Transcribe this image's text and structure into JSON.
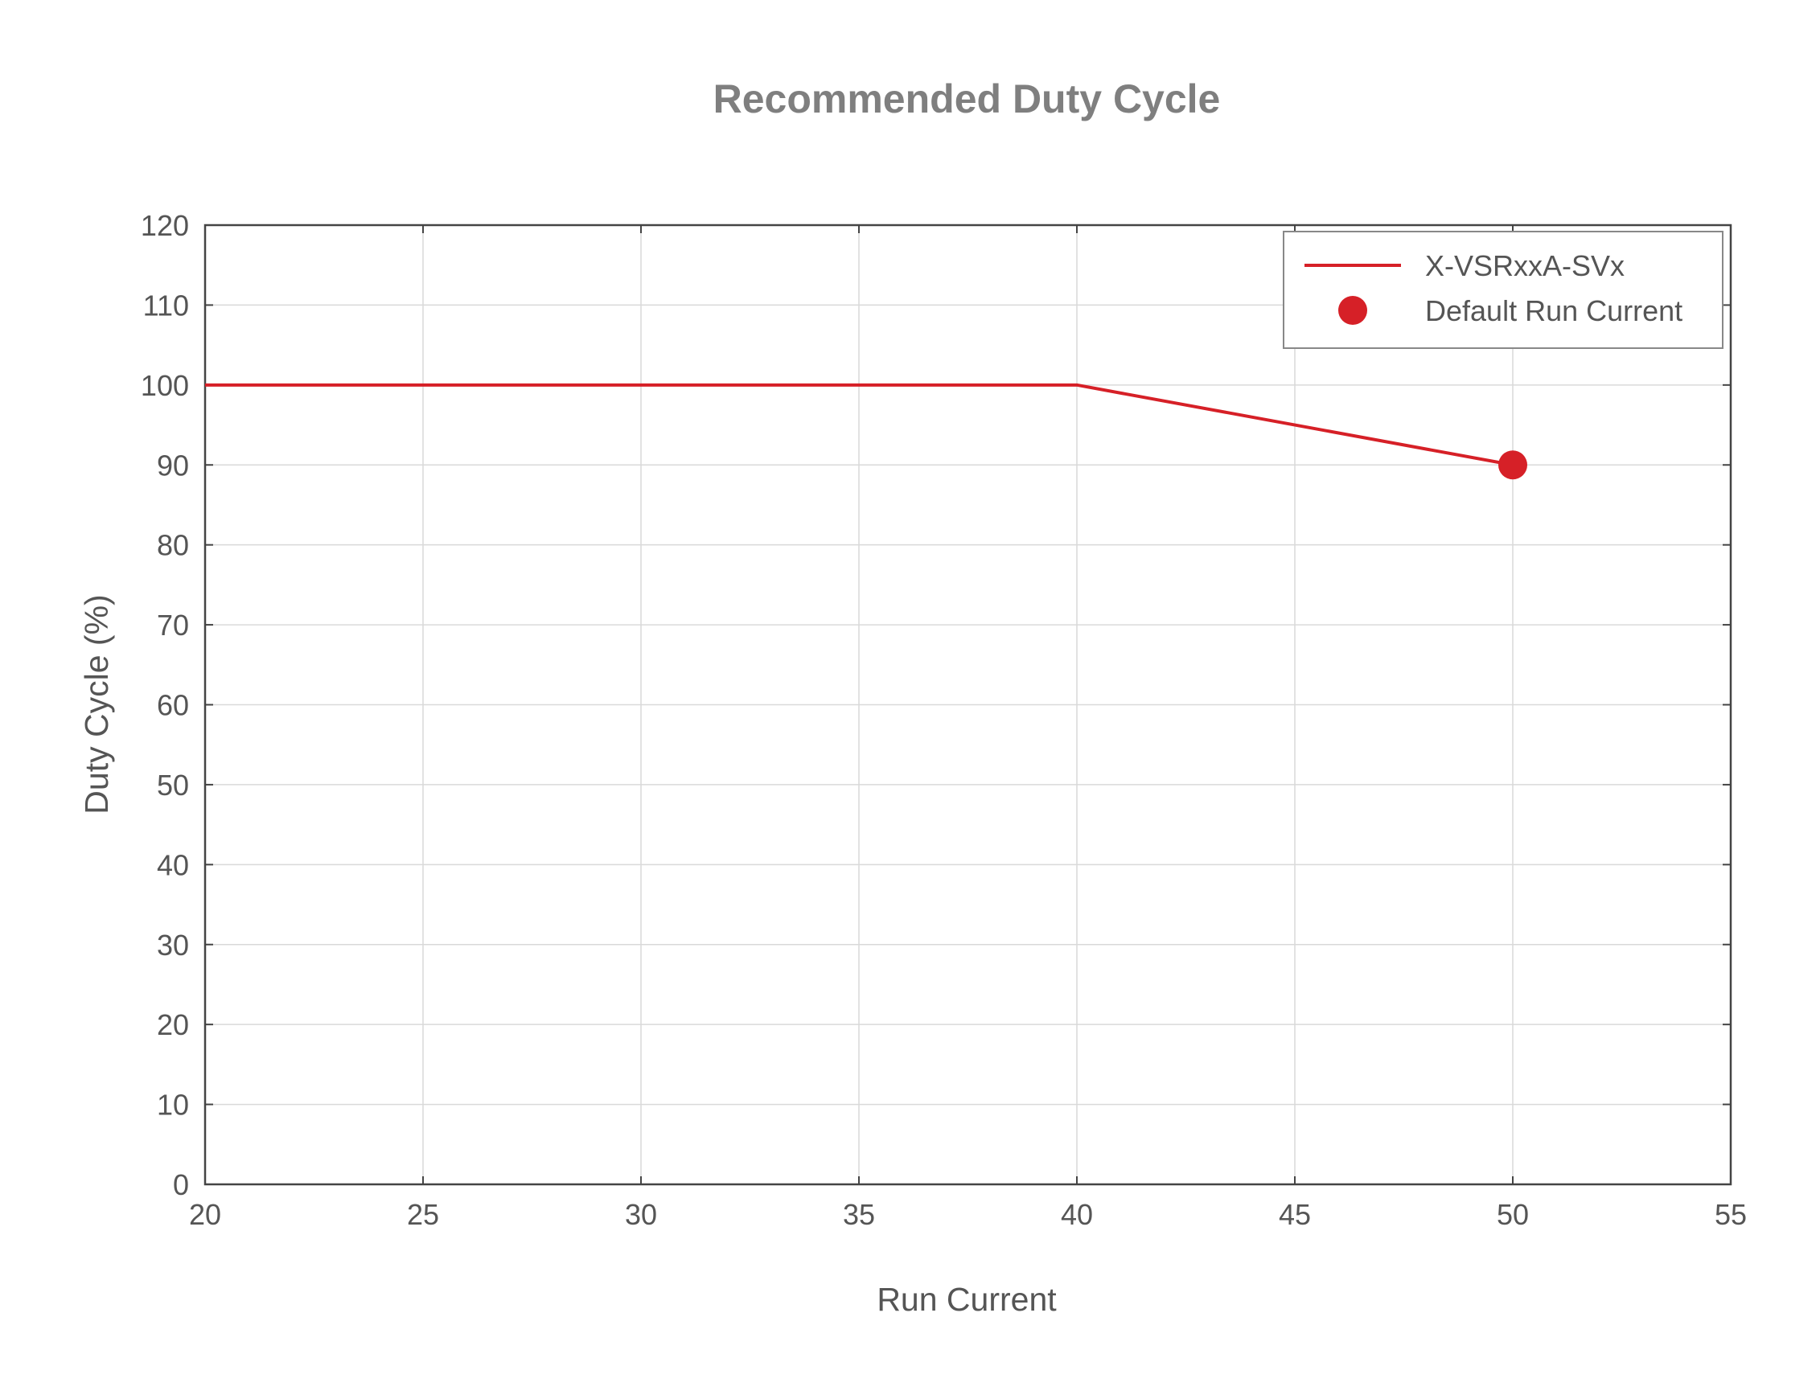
{
  "chart_data": {
    "type": "line",
    "title": "Recommended Duty Cycle",
    "xlabel": "Run Current",
    "ylabel": "Duty Cycle (%)",
    "xlim": [
      20,
      55
    ],
    "ylim": [
      0,
      120
    ],
    "xticks": [
      20,
      25,
      30,
      35,
      40,
      45,
      50,
      55
    ],
    "yticks": [
      0,
      10,
      20,
      30,
      40,
      50,
      60,
      70,
      80,
      90,
      100,
      110,
      120
    ],
    "grid": true,
    "legend_position": "top-right",
    "series": [
      {
        "name": "X-VSRxxA-SVx",
        "kind": "line",
        "color": "#d62027",
        "x": [
          20,
          40,
          50
        ],
        "y": [
          100,
          100,
          90
        ]
      },
      {
        "name": "Default Run Current",
        "kind": "marker",
        "color": "#d62027",
        "x": [
          50
        ],
        "y": [
          90
        ]
      }
    ]
  }
}
